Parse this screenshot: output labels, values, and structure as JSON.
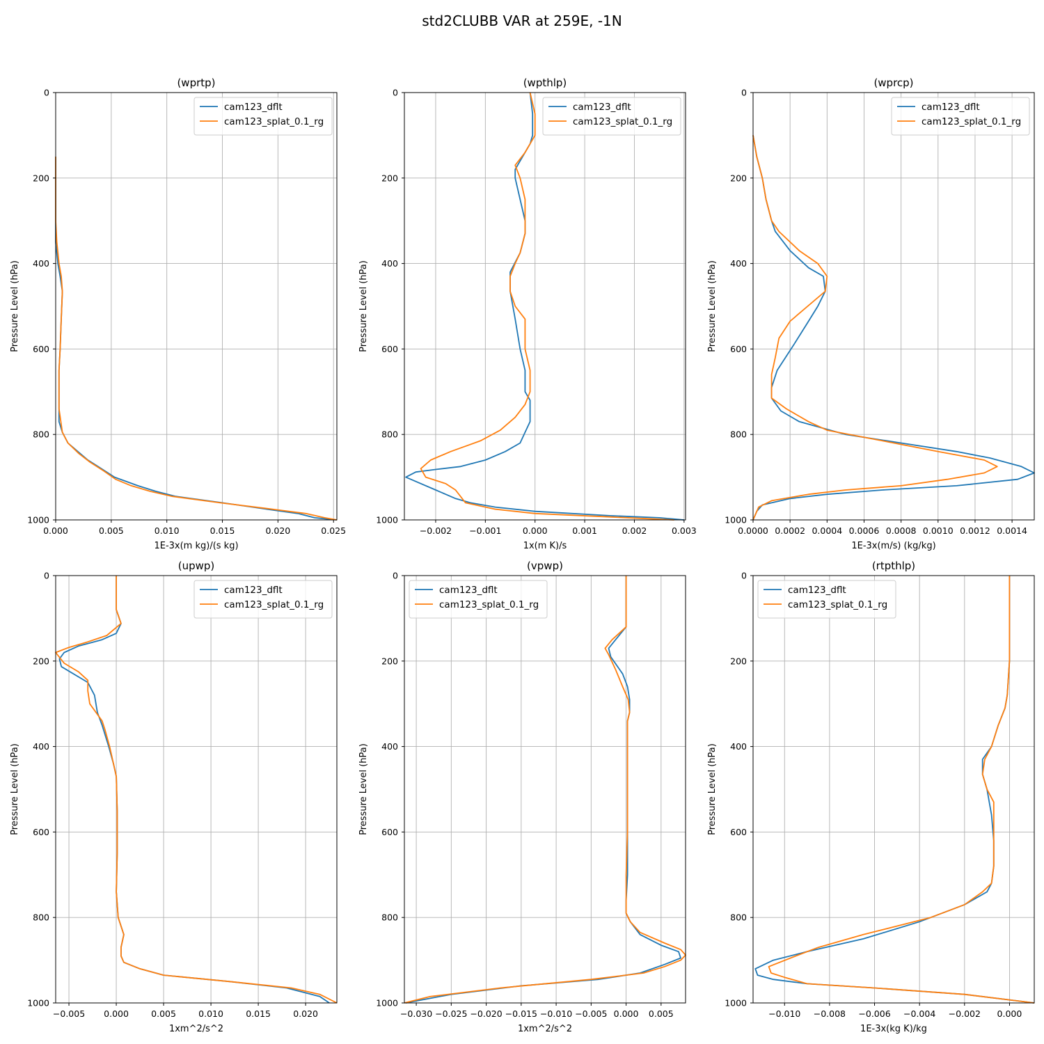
{
  "figure": {
    "title": "std2CLUBB VAR at 259E, -1N"
  },
  "colors": {
    "series_1": "#1f77b4",
    "series_2": "#ff7f0e",
    "grid": "#b0b0b0"
  },
  "chart_data": [
    {
      "type": "line",
      "title": "(wprtp)",
      "xlabel": "1E-3x(m kg)/(s kg)",
      "ylabel": "Pressure Level (hPa)",
      "xlim": [
        0,
        0.0253
      ],
      "ylim": [
        1000,
        0
      ],
      "y_inverted": true,
      "grid": true,
      "legend_position": "upper right",
      "xticks": [
        0,
        0.005,
        0.01,
        0.015,
        0.02,
        0.025
      ],
      "xtick_labels": [
        "0.000",
        "0.005",
        "0.010",
        "0.015",
        "0.020",
        "0.025"
      ],
      "yticks": [
        0,
        200,
        400,
        600,
        800,
        1000
      ],
      "ytick_labels": [
        "0",
        "200",
        "400",
        "600",
        "800",
        "1000"
      ],
      "series": [
        {
          "name": "cam123_dflt",
          "x": [
            0,
            0,
            0,
            0,
            0.0002,
            0.0004,
            0.0006,
            0.0005,
            0.0004,
            0.0003,
            0.0003,
            0.0003,
            0.0003,
            0.0006,
            0.0011,
            0.002,
            0.0029,
            0.0041,
            0.0053,
            0.0074,
            0.009,
            0.0108,
            0.015,
            0.019,
            0.0218,
            0.0233,
            0.0253
          ],
          "y": [
            150,
            200,
            300,
            350,
            400,
            430,
            465,
            530,
            600,
            650,
            700,
            740,
            770,
            795,
            820,
            840,
            860,
            880,
            900,
            920,
            933,
            945,
            960,
            975,
            985,
            995,
            1000
          ]
        },
        {
          "name": "cam123_splat_0.1_rg",
          "x": [
            0,
            0,
            0,
            0.0001,
            0.0003,
            0.0005,
            0.0006,
            0.0005,
            0.0004,
            0.0003,
            0.0003,
            0.0003,
            0.0006,
            0.0011,
            0.0021,
            0.0031,
            0.0043,
            0.0054,
            0.0068,
            0.0085,
            0.0105,
            0.0148,
            0.0195,
            0.0225,
            0.0242,
            0.0253
          ],
          "y": [
            150,
            200,
            300,
            350,
            400,
            430,
            465,
            530,
            600,
            650,
            700,
            740,
            795,
            820,
            845,
            865,
            885,
            905,
            920,
            933,
            945,
            960,
            975,
            985,
            995,
            1000
          ]
        }
      ]
    },
    {
      "type": "line",
      "title": "(wpthlp)",
      "xlabel": "1x(m K)/s",
      "ylabel": "Pressure Level (hPa)",
      "xlim": [
        -0.00263,
        0.00303
      ],
      "ylim": [
        1000,
        0
      ],
      "y_inverted": true,
      "grid": true,
      "legend_position": "upper right",
      "xticks": [
        -0.002,
        -0.001,
        0,
        0.001,
        0.002,
        0.003
      ],
      "xtick_labels": [
        "−0.002",
        "−0.001",
        "0.000",
        "0.001",
        "0.002",
        "0.003"
      ],
      "yticks": [
        0,
        200,
        400,
        600,
        800,
        1000
      ],
      "ytick_labels": [
        "0",
        "200",
        "400",
        "600",
        "800",
        "1000"
      ],
      "series": [
        {
          "name": "cam123_dflt",
          "x": [
            -0.0001,
            -5e-05,
            -5e-05,
            -0.0001,
            -0.0002,
            -0.0003,
            -0.0004,
            -0.0004,
            -0.0003,
            -0.0002,
            -0.0002,
            -0.0003,
            -0.0005,
            -0.0005,
            -0.0005,
            -0.0004,
            -0.0003,
            -0.0002,
            -0.0002,
            -0.0001,
            -0.0001,
            -0.0001,
            -0.0002,
            -0.0003,
            -0.0006,
            -0.001,
            -0.0015,
            -0.002,
            -0.0024,
            -0.0026,
            -0.0025,
            -0.002,
            -0.0016,
            -0.0013,
            -0.0008,
            0,
            0.0015,
            0.0025,
            0.003
          ],
          "y": [
            0,
            50,
            100,
            120,
            140,
            160,
            180,
            200,
            250,
            300,
            330,
            375,
            420,
            435,
            465,
            530,
            600,
            650,
            700,
            720,
            740,
            770,
            795,
            820,
            840,
            860,
            875,
            882,
            888,
            900,
            905,
            930,
            950,
            960,
            970,
            980,
            990,
            995,
            1000
          ]
        },
        {
          "name": "cam123_splat_0.1_rg",
          "x": [
            -0.0001,
            0,
            0,
            -0.0001,
            -0.0002,
            -0.0004,
            -0.0003,
            -0.0002,
            -0.0002,
            -0.0002,
            -0.0003,
            -0.0004,
            -0.0005,
            -0.0005,
            -0.0004,
            -0.0002,
            -0.0002,
            -0.0001,
            -0.0001,
            -0.0002,
            -0.0004,
            -0.0007,
            -0.0011,
            -0.0017,
            -0.0021,
            -0.0023,
            -0.0022,
            -0.0018,
            -0.0016,
            -0.0014,
            -0.0008,
            0,
            0.0015,
            0.0028
          ],
          "y": [
            0,
            50,
            100,
            120,
            140,
            170,
            200,
            250,
            300,
            330,
            375,
            400,
            430,
            465,
            500,
            530,
            600,
            650,
            700,
            730,
            760,
            790,
            815,
            840,
            860,
            880,
            900,
            915,
            930,
            960,
            975,
            985,
            993,
            1000
          ]
        }
      ]
    },
    {
      "type": "line",
      "title": "(wprcp)",
      "xlabel": "1E-3x(m/s) (kg/kg)",
      "ylabel": "Pressure Level (hPa)",
      "xlim": [
        0,
        0.00152
      ],
      "ylim": [
        1000,
        0
      ],
      "y_inverted": true,
      "grid": true,
      "legend_position": "upper right",
      "xticks": [
        0,
        0.0002,
        0.0004,
        0.0006,
        0.0008,
        0.001,
        0.0012,
        0.0014
      ],
      "xtick_labels": [
        "0.0000",
        "0.0002",
        "0.0004",
        "0.0006",
        "0.0008",
        "0.0010",
        "0.0012",
        "0.0014"
      ],
      "yticks": [
        0,
        200,
        400,
        600,
        800,
        1000
      ],
      "ytick_labels": [
        "0",
        "200",
        "400",
        "600",
        "800",
        "1000"
      ],
      "series": [
        {
          "name": "cam123_dflt",
          "x": [
            0,
            2e-05,
            5e-05,
            7e-05,
            0.0001,
            0.00012,
            0.0002,
            0.0003,
            0.00038,
            0.00039,
            0.00035,
            0.0003,
            0.00022,
            0.00013,
            0.0001,
            0.0001,
            0.00015,
            0.00025,
            0.0005,
            0.0008,
            0.0011,
            0.00128,
            0.00145,
            0.00152,
            0.00143,
            0.0011,
            0.0007,
            0.0004,
            0.0002,
            5e-05,
            2e-05,
            0
          ],
          "y": [
            100,
            150,
            200,
            250,
            300,
            325,
            370,
            410,
            430,
            465,
            500,
            535,
            590,
            650,
            690,
            715,
            745,
            770,
            800,
            820,
            840,
            855,
            875,
            890,
            905,
            920,
            930,
            940,
            950,
            965,
            980,
            1000
          ]
        },
        {
          "name": "cam123_splat_0.1_rg",
          "x": [
            0,
            2e-05,
            5e-05,
            7e-05,
            0.0001,
            0.00014,
            0.00025,
            0.00035,
            0.0004,
            0.00039,
            0.0002,
            0.00014,
            0.00012,
            0.0001,
            0.0001,
            0.0001,
            0.00018,
            0.0003,
            0.0004,
            0.0007,
            0.001,
            0.00125,
            0.00132,
            0.00125,
            0.00105,
            0.0008,
            0.0005,
            0.0003,
            0.0001,
            3e-05,
            0
          ],
          "y": [
            100,
            150,
            200,
            250,
            300,
            325,
            370,
            400,
            430,
            465,
            535,
            575,
            620,
            660,
            690,
            715,
            740,
            770,
            790,
            815,
            840,
            860,
            875,
            890,
            905,
            920,
            930,
            940,
            955,
            970,
            1000
          ]
        }
      ]
    },
    {
      "type": "line",
      "title": "(upwp)",
      "xlabel": "1xm^2/s^2",
      "ylabel": "Pressure Level (hPa)",
      "xlim": [
        -0.0064,
        0.0233
      ],
      "ylim": [
        1000,
        0
      ],
      "y_inverted": true,
      "grid": true,
      "legend_position": "upper right",
      "xticks": [
        -0.005,
        0,
        0.005,
        0.01,
        0.015,
        0.02
      ],
      "xtick_labels": [
        "−0.005",
        "0.000",
        "0.005",
        "0.010",
        "0.015",
        "0.020"
      ],
      "yticks": [
        0,
        200,
        400,
        600,
        800,
        1000
      ],
      "ytick_labels": [
        "0",
        "200",
        "400",
        "600",
        "800",
        "1000"
      ],
      "series": [
        {
          "name": "cam123_dflt",
          "x": [
            0,
            0,
            0.0005,
            0,
            -0.0015,
            -0.004,
            -0.0055,
            -0.006,
            -0.0058,
            -0.003,
            -0.0023,
            -0.002,
            -0.0015,
            -0.0008,
            -0.0003,
            0,
            0.0001,
            0.0001,
            0,
            0.0002,
            0.0008,
            0.0005,
            0.0005,
            0.0008,
            0.0025,
            0.005,
            0.012,
            0.018,
            0.0215,
            0.0225
          ],
          "y": [
            0,
            80,
            112,
            135,
            150,
            165,
            180,
            195,
            213,
            250,
            280,
            320,
            350,
            400,
            440,
            470,
            550,
            650,
            740,
            800,
            840,
            870,
            890,
            905,
            920,
            935,
            950,
            965,
            985,
            1000
          ]
        },
        {
          "name": "cam123_splat_0.1_rg",
          "x": [
            0,
            0,
            0.0005,
            -0.001,
            -0.003,
            -0.005,
            -0.0064,
            -0.0055,
            -0.004,
            -0.003,
            -0.003,
            -0.0028,
            -0.0015,
            -0.0012,
            -0.0007,
            -0.0003,
            0,
            0.0001,
            0.0001,
            0,
            0.0002,
            0.0008,
            0.0005,
            0.0005,
            0.0008,
            0.0025,
            0.005,
            0.012,
            0.0185,
            0.0215,
            0.0233
          ],
          "y": [
            0,
            80,
            112,
            140,
            155,
            168,
            180,
            205,
            225,
            245,
            270,
            300,
            340,
            360,
            400,
            440,
            470,
            550,
            650,
            740,
            800,
            840,
            870,
            890,
            905,
            920,
            935,
            950,
            965,
            980,
            1000
          ]
        }
      ]
    },
    {
      "type": "line",
      "title": "(vpwp)",
      "xlabel": "1xm^2/s^2",
      "ylabel": "Pressure Level (hPa)",
      "xlim": [
        -0.0317,
        0.0085
      ],
      "ylim": [
        1000,
        0
      ],
      "y_inverted": true,
      "grid": true,
      "legend_position": "upper left",
      "xticks": [
        -0.03,
        -0.025,
        -0.02,
        -0.015,
        -0.01,
        -0.005,
        0,
        0.005
      ],
      "xtick_labels": [
        "−0.030",
        "−0.025",
        "−0.020",
        "−0.015",
        "−0.010",
        "−0.005",
        "0.000",
        "0.005"
      ],
      "yticks": [
        0,
        200,
        400,
        600,
        800,
        1000
      ],
      "ytick_labels": [
        "0",
        "200",
        "400",
        "600",
        "800",
        "1000"
      ],
      "series": [
        {
          "name": "cam123_dflt",
          "x": [
            0,
            0,
            0,
            -0.0015,
            -0.0025,
            -0.0022,
            -0.0005,
            0.0002,
            0.0005,
            0.0005,
            0.0002,
            0.0002,
            0.0002,
            0.0002,
            0.0002,
            0,
            0,
            0.0006,
            0.002,
            0.005,
            0.0075,
            0.0078,
            0.0055,
            0.002,
            -0.004,
            -0.015,
            -0.025,
            -0.0315
          ],
          "y": [
            0,
            80,
            120,
            150,
            170,
            190,
            230,
            260,
            290,
            320,
            340,
            400,
            500,
            600,
            700,
            760,
            790,
            810,
            840,
            865,
            880,
            895,
            910,
            930,
            945,
            960,
            980,
            1000
          ]
        },
        {
          "name": "cam123_splat_0.1_rg",
          "x": [
            0,
            0,
            0,
            -0.002,
            -0.003,
            -0.0025,
            -0.0015,
            -0.0005,
            0.0003,
            0.0005,
            0.0002,
            0.0002,
            0.0002,
            0.0002,
            0,
            0,
            0.0006,
            0.002,
            0.0055,
            0.0078,
            0.0085,
            0.0078,
            0.0055,
            0.0025,
            -0.005,
            -0.018,
            -0.028,
            -0.0317
          ],
          "y": [
            0,
            80,
            120,
            150,
            170,
            185,
            220,
            260,
            290,
            320,
            340,
            400,
            500,
            600,
            700,
            790,
            810,
            835,
            860,
            875,
            888,
            900,
            915,
            930,
            945,
            965,
            985,
            1000
          ]
        }
      ]
    },
    {
      "type": "line",
      "title": "(rtpthlp)",
      "xlabel": "1E-3x(kg K)/kg",
      "ylabel": "Pressure Level (hPa)",
      "xlim": [
        -0.0114,
        0.0011
      ],
      "ylim": [
        1000,
        0
      ],
      "y_inverted": true,
      "grid": true,
      "legend_position": "upper left",
      "xticks": [
        -0.01,
        -0.008,
        -0.006,
        -0.004,
        -0.002,
        0
      ],
      "xtick_labels": [
        "−0.010",
        "−0.008",
        "−0.006",
        "−0.004",
        "−0.002",
        "0.000"
      ],
      "yticks": [
        0,
        200,
        400,
        600,
        800,
        1000
      ],
      "ytick_labels": [
        "0",
        "200",
        "400",
        "600",
        "800",
        "1000"
      ],
      "series": [
        {
          "name": "cam123_dflt",
          "x": [
            0,
            0,
            -0.0001,
            -0.0002,
            -0.0005,
            -0.0008,
            -0.0012,
            -0.0012,
            -0.001,
            -0.0008,
            -0.0007,
            -0.0007,
            -0.0008,
            -0.001,
            -0.002,
            -0.004,
            -0.0065,
            -0.009,
            -0.0105,
            -0.0113,
            -0.0112,
            -0.0105,
            -0.009,
            -0.006,
            -0.002,
            0.0011
          ],
          "y": [
            0,
            200,
            280,
            310,
            350,
            400,
            430,
            465,
            500,
            560,
            620,
            680,
            720,
            740,
            770,
            810,
            850,
            880,
            900,
            920,
            935,
            945,
            955,
            965,
            980,
            1000
          ]
        },
        {
          "name": "cam123_splat_0.1_rg",
          "x": [
            0,
            0,
            -0.0001,
            -0.0002,
            -0.0005,
            -0.0008,
            -0.0011,
            -0.0012,
            -0.001,
            -0.0007,
            -0.0007,
            -0.0007,
            -0.0008,
            -0.0012,
            -0.002,
            -0.0035,
            -0.0065,
            -0.0085,
            -0.0095,
            -0.0107,
            -0.0106,
            -0.01,
            -0.009,
            -0.006,
            -0.002,
            0.0011
          ],
          "y": [
            0,
            200,
            280,
            310,
            350,
            400,
            430,
            465,
            500,
            530,
            570,
            680,
            720,
            740,
            770,
            800,
            840,
            870,
            890,
            915,
            930,
            940,
            955,
            965,
            980,
            1000
          ]
        }
      ]
    }
  ]
}
